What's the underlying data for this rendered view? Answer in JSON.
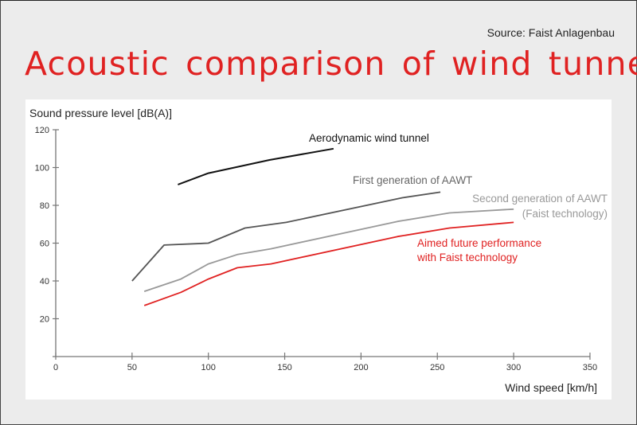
{
  "header": {
    "source": "Source: Faist Anlagenbau",
    "title": "Acoustic comparison of wind tunnels"
  },
  "colors": {
    "title": "#e02222",
    "aerodynamic": "#111111",
    "first_gen": "#555555",
    "second_gen": "#999999",
    "aimed": "#e02222"
  },
  "chart_data": {
    "type": "line",
    "title": "Acoustic comparison of wind tunnels",
    "subtitle": "Source: Faist Anlagenbau",
    "xlabel": "Wind speed [km/h]",
    "ylabel": "Sound pressure level [dB(A)]",
    "xlim": [
      0,
      350
    ],
    "ylim": [
      0,
      120
    ],
    "xticks": [
      0,
      50,
      100,
      150,
      200,
      250,
      300,
      350
    ],
    "yticks": [
      20,
      40,
      60,
      80,
      100,
      120
    ],
    "grid": false,
    "legend_position": "inline labels next to lines",
    "series": [
      {
        "name": "Aerodynamic wind tunnel",
        "color": "#111111",
        "x": [
          80,
          100,
          140,
          182
        ],
        "y": [
          91,
          97,
          104,
          110
        ]
      },
      {
        "name": "First generation of AAWT",
        "color": "#555555",
        "x": [
          50,
          71,
          100,
          124,
          151,
          227,
          252
        ],
        "y": [
          40,
          59,
          60,
          68,
          71,
          84,
          87
        ]
      },
      {
        "name": "Second generation of AAWT (Faist technology)",
        "color": "#999999",
        "x": [
          58,
          82,
          100,
          119,
          141,
          224,
          258,
          300
        ],
        "y": [
          34.5,
          41,
          49,
          54,
          57,
          71.5,
          76,
          78
        ]
      },
      {
        "name": "Aimed future performance with Faist technology",
        "color": "#e02222",
        "x": [
          58,
          82,
          100,
          119,
          141,
          224,
          258,
          300
        ],
        "y": [
          27,
          34,
          41,
          47,
          49,
          63.5,
          68,
          71
        ]
      }
    ]
  },
  "labels": {
    "aerodynamic": "Aerodynamic wind tunnel",
    "first_gen": "First generation of AAWT",
    "second_gen_1": "Second generation of AAWT",
    "second_gen_2": "(Faist technology)",
    "aimed_1": "Aimed future performance",
    "aimed_2": "with Faist technology"
  }
}
